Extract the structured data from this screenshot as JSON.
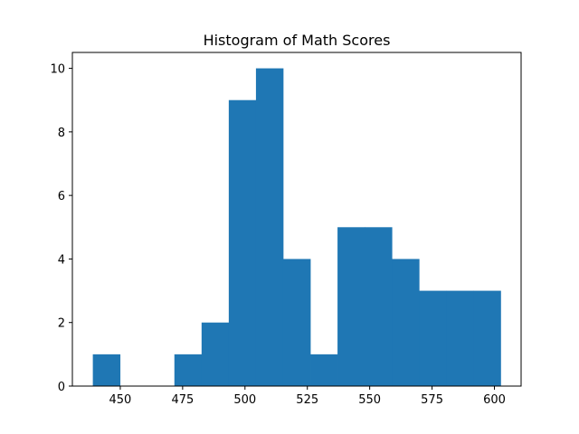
{
  "chart_data": {
    "type": "bar",
    "title": "Histogram of Math Scores",
    "xlabel": "",
    "ylabel": "",
    "bin_edges": [
      439,
      449.9,
      460.8,
      471.7,
      482.6,
      493.5,
      504.4,
      515.3,
      526.2,
      537.1,
      548.0,
      558.9,
      569.8,
      580.7,
      591.6,
      602.5
    ],
    "counts": [
      1,
      0,
      0,
      1,
      2,
      9,
      10,
      4,
      1,
      5,
      5,
      4,
      3,
      3,
      3
    ],
    "xlim": [
      430.8,
      610.7
    ],
    "ylim": [
      0,
      10.5
    ],
    "xticks": [
      450,
      475,
      500,
      525,
      550,
      575,
      600
    ],
    "yticks": [
      0,
      2,
      4,
      6,
      8,
      10
    ],
    "bar_color": "#1f77b4",
    "grid": false
  }
}
